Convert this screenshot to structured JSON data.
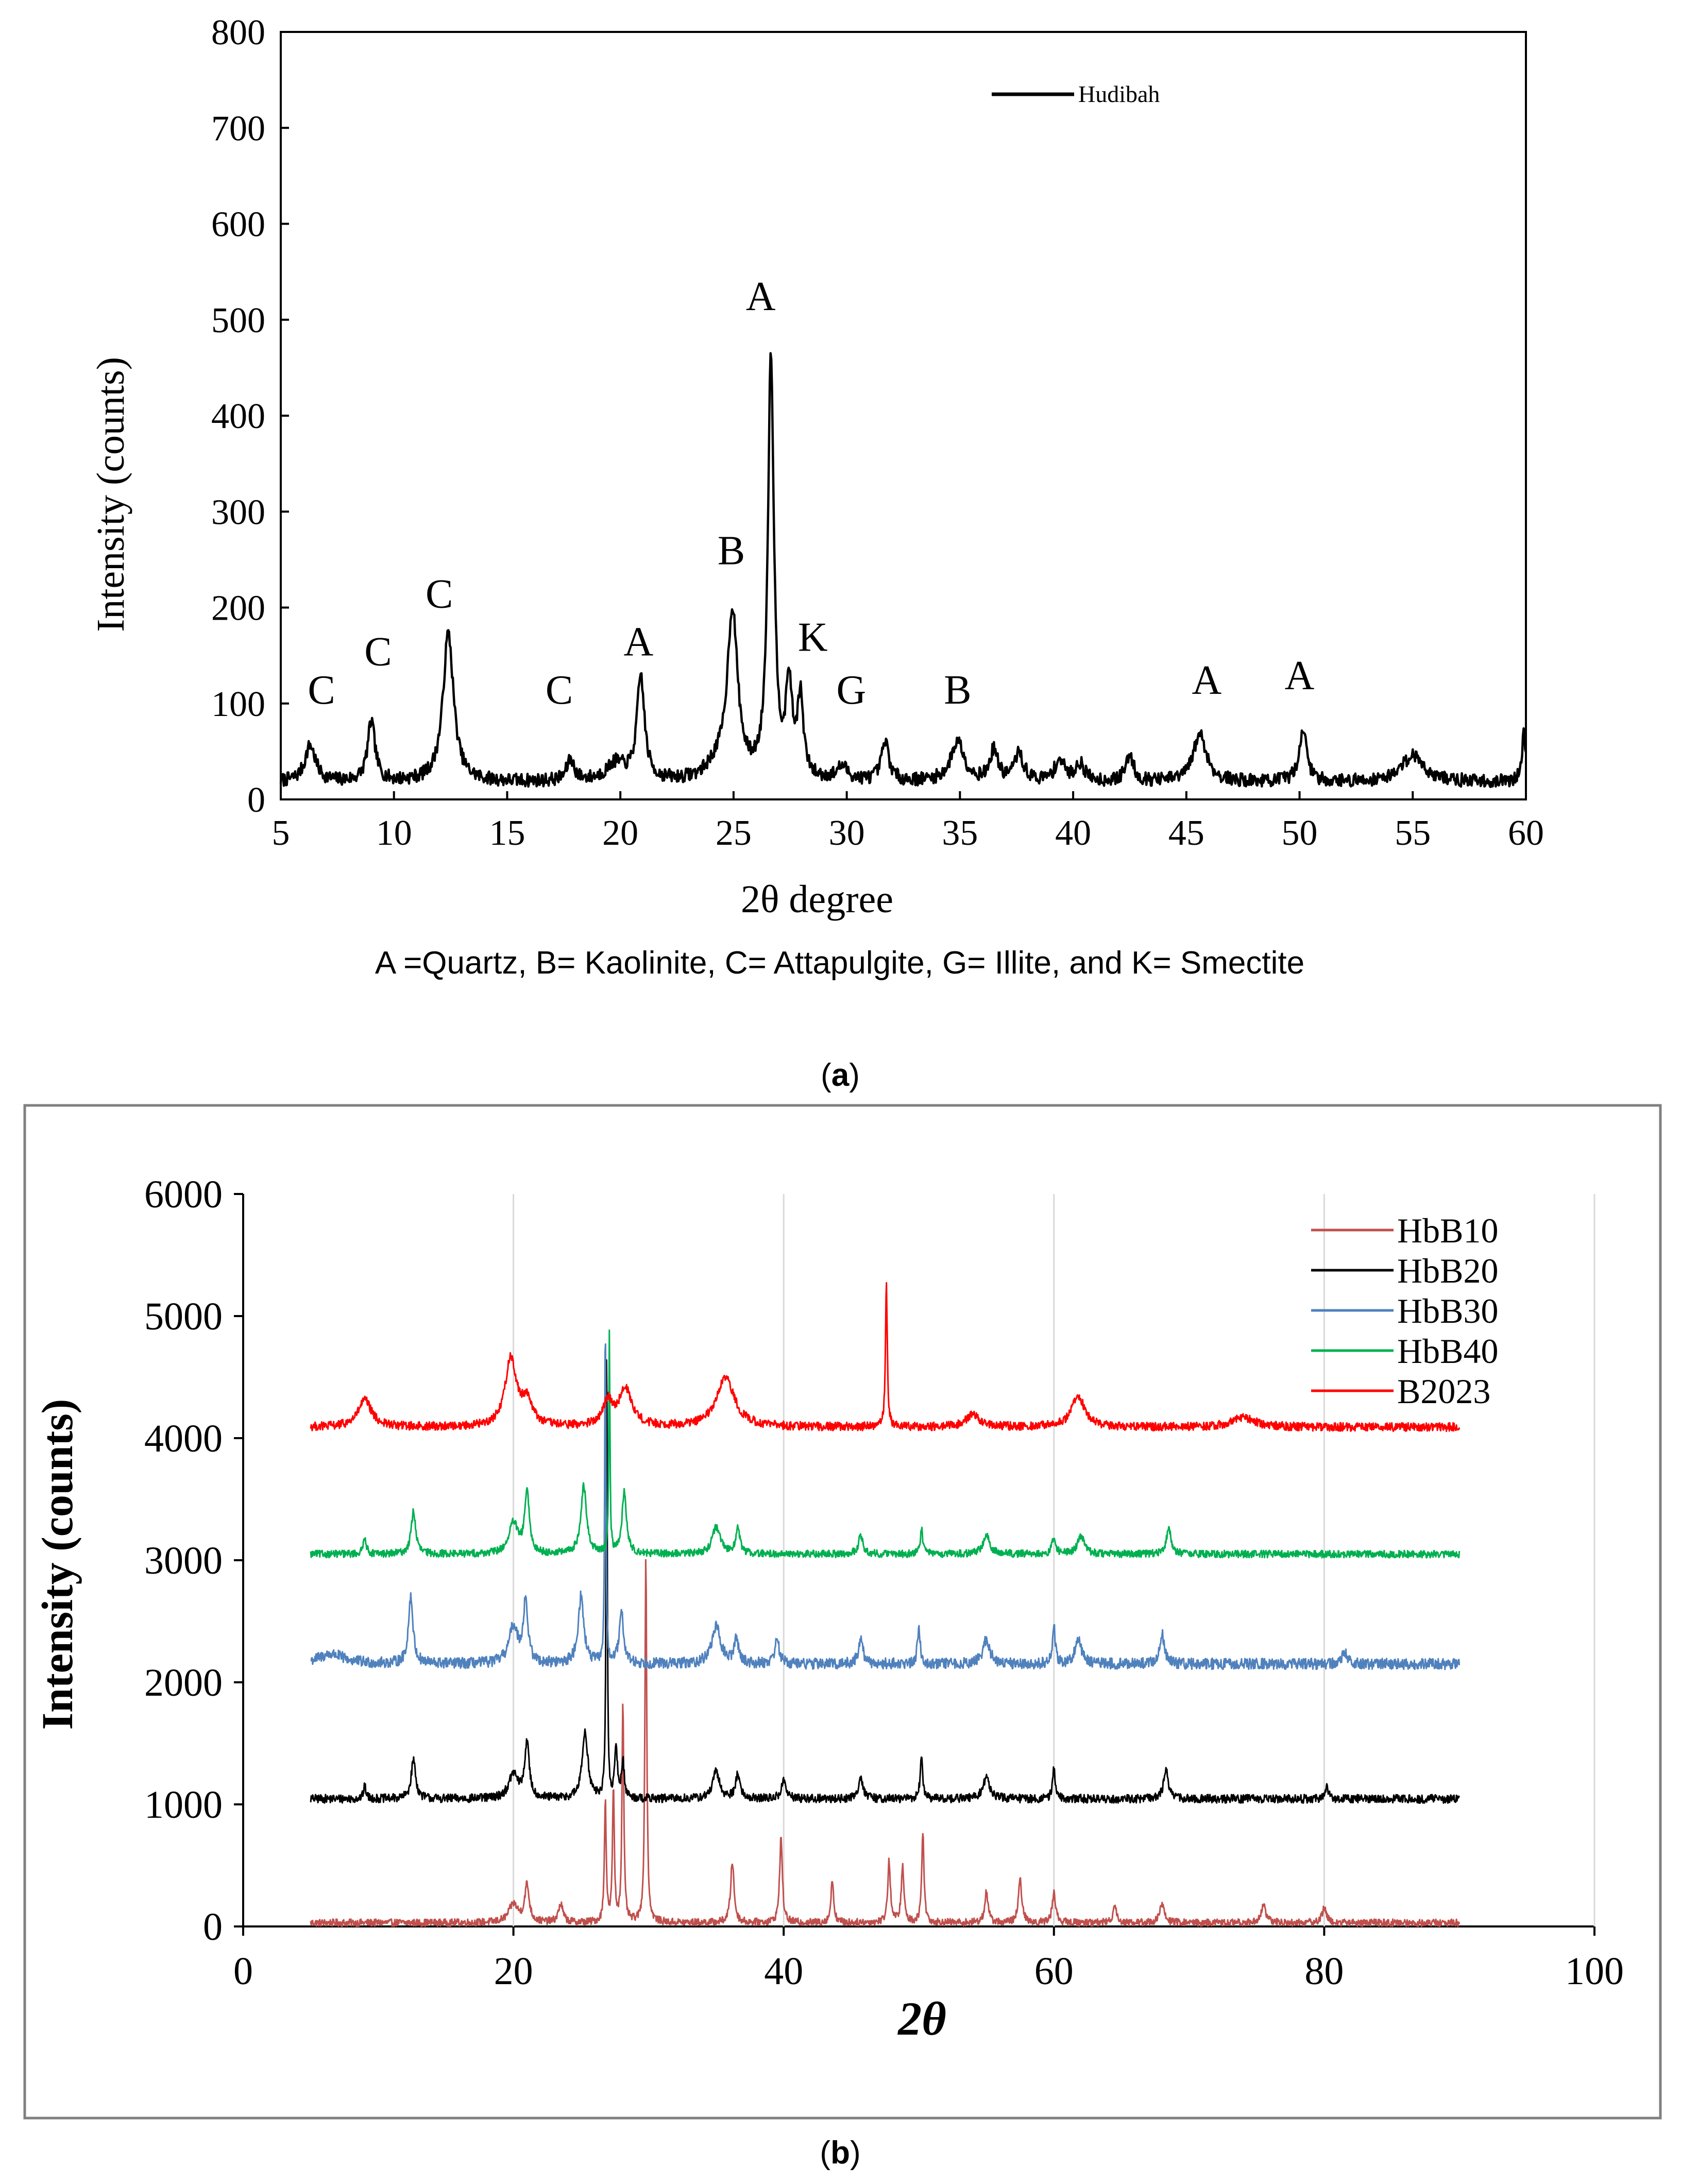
{
  "colors": {
    "hudibah": "#000000",
    "HbB10": "#c0504d",
    "HbB20": "#000000",
    "HbB30": "#4f81bd",
    "HbB40": "#00b050",
    "B2023": "#ff0000",
    "frame": "#808080"
  },
  "chart_data": [
    {
      "id": "a",
      "type": "line",
      "title": "",
      "xlabel": "2θ degree",
      "ylabel": "Intensity (counts)",
      "xlim": [
        5,
        60
      ],
      "ylim": [
        0,
        800
      ],
      "xticks": [
        5,
        10,
        15,
        20,
        25,
        30,
        35,
        40,
        45,
        50,
        55,
        60
      ],
      "yticks": [
        0,
        100,
        200,
        300,
        400,
        500,
        600,
        700,
        800
      ],
      "legend": {
        "position": "top-right",
        "entries": [
          "Hudibah"
        ]
      },
      "series": [
        {
          "name": "Hudibah",
          "baseline": 18,
          "noise": 14,
          "peaks": [
            [
              6.3,
              38,
              0.28
            ],
            [
              9.0,
              62,
              0.2
            ],
            [
              12.4,
              155,
              0.28
            ],
            [
              17.8,
              22,
              0.2
            ],
            [
              19.8,
              18,
              0.5
            ],
            [
              20.9,
              108,
              0.2
            ],
            [
              24.2,
              12,
              0.5
            ],
            [
              24.95,
              175,
              0.28
            ],
            [
              26.65,
              440,
              0.16
            ],
            [
              27.45,
              95,
              0.16
            ],
            [
              27.95,
              82,
              0.16
            ],
            [
              29.8,
              14,
              0.3
            ],
            [
              31.7,
              40,
              0.2
            ],
            [
              34.9,
              42,
              0.35
            ],
            [
              36.5,
              32,
              0.2
            ],
            [
              37.6,
              28,
              0.25
            ],
            [
              39.4,
              22,
              0.25
            ],
            [
              40.3,
              18,
              0.25
            ],
            [
              42.5,
              28,
              0.2
            ],
            [
              45.6,
              50,
              0.35
            ],
            [
              50.15,
              55,
              0.2
            ],
            [
              55.0,
              28,
              0.6
            ],
            [
              59.9,
              50,
              0.1
            ]
          ]
        }
      ],
      "annotations": [
        {
          "text": "C",
          "x": 6.8,
          "y": 100
        },
        {
          "text": "C",
          "x": 9.3,
          "y": 140
        },
        {
          "text": "C",
          "x": 12.0,
          "y": 200
        },
        {
          "text": "C",
          "x": 17.3,
          "y": 100
        },
        {
          "text": "A",
          "x": 20.8,
          "y": 150
        },
        {
          "text": "B",
          "x": 24.9,
          "y": 245
        },
        {
          "text": "A",
          "x": 26.2,
          "y": 510
        },
        {
          "text": "K",
          "x": 28.5,
          "y": 155
        },
        {
          "text": "G",
          "x": 30.2,
          "y": 100
        },
        {
          "text": "B",
          "x": 34.9,
          "y": 100
        },
        {
          "text": "A",
          "x": 45.9,
          "y": 110
        },
        {
          "text": "A",
          "x": 50.0,
          "y": 115
        }
      ],
      "caption_note": "A =Quartz, B= Kaolinite, C= Attapulgite, G= Illite, and K= Smectite",
      "panel_label": "a"
    },
    {
      "id": "b",
      "type": "line",
      "title": "",
      "xlabel": "2θ",
      "ylabel": "Intensity (counts)",
      "xlim": [
        0,
        100
      ],
      "ylim": [
        0,
        6000
      ],
      "xticks": [
        0,
        20,
        40,
        60,
        80,
        100
      ],
      "yticks": [
        0,
        1000,
        2000,
        3000,
        4000,
        5000,
        6000
      ],
      "legend": {
        "position": "top-right",
        "entries": [
          "HbB10",
          "HbB20",
          "HbB30",
          "HbB40",
          "B2023"
        ]
      },
      "series": [
        {
          "name": "HbB10",
          "offset": 0,
          "baseline": 30,
          "noise": 60,
          "peaks": [
            [
              20.0,
              150,
              0.4
            ],
            [
              21.0,
              300,
              0.2
            ],
            [
              23.5,
              150,
              0.2
            ],
            [
              26.8,
              1000,
              0.08
            ],
            [
              27.4,
              1100,
              0.08
            ],
            [
              28.1,
              1800,
              0.08
            ],
            [
              29.8,
              3000,
              0.08
            ],
            [
              36.2,
              500,
              0.15
            ],
            [
              39.8,
              700,
              0.12
            ],
            [
              43.6,
              350,
              0.12
            ],
            [
              47.8,
              500,
              0.12
            ],
            [
              48.8,
              450,
              0.12
            ],
            [
              50.3,
              750,
              0.1
            ],
            [
              55.0,
              250,
              0.15
            ],
            [
              57.5,
              350,
              0.15
            ],
            [
              60.0,
              250,
              0.15
            ],
            [
              64.5,
              150,
              0.15
            ],
            [
              68.0,
              150,
              0.2
            ],
            [
              75.5,
              150,
              0.2
            ],
            [
              80.0,
              120,
              0.2
            ]
          ]
        },
        {
          "name": "HbB20",
          "offset": 1000,
          "baseline": 45,
          "noise": 70,
          "peaks": [
            [
              9.0,
              100,
              0.12
            ],
            [
              12.6,
              320,
              0.2
            ],
            [
              20.0,
              200,
              0.4
            ],
            [
              21.0,
              450,
              0.2
            ],
            [
              25.3,
              550,
              0.25
            ],
            [
              26.9,
              3800,
              0.05
            ],
            [
              27.6,
              400,
              0.12
            ],
            [
              28.1,
              300,
              0.12
            ],
            [
              35.0,
              220,
              0.3
            ],
            [
              36.6,
              200,
              0.2
            ],
            [
              40.0,
              150,
              0.2
            ],
            [
              45.7,
              180,
              0.2
            ],
            [
              50.2,
              320,
              0.12
            ],
            [
              55.0,
              170,
              0.3
            ],
            [
              60.0,
              250,
              0.12
            ],
            [
              68.3,
              250,
              0.2
            ],
            [
              80.2,
              100,
              0.15
            ]
          ]
        },
        {
          "name": "HbB30",
          "offset": 2000,
          "baseline": 150,
          "noise": 90,
          "peaks": [
            [
              6.5,
              80,
              1.2
            ],
            [
              12.4,
              550,
              0.2
            ],
            [
              20.0,
              300,
              0.4
            ],
            [
              20.9,
              500,
              0.2
            ],
            [
              25.0,
              550,
              0.25
            ],
            [
              26.8,
              2900,
              0.05
            ],
            [
              28.0,
              400,
              0.2
            ],
            [
              35.0,
              300,
              0.4
            ],
            [
              36.5,
              200,
              0.2
            ],
            [
              39.5,
              200,
              0.2
            ],
            [
              45.7,
              200,
              0.2
            ],
            [
              50.0,
              300,
              0.12
            ],
            [
              55.0,
              200,
              0.3
            ],
            [
              60.0,
              300,
              0.12
            ],
            [
              61.8,
              200,
              0.3
            ],
            [
              68.0,
              250,
              0.2
            ],
            [
              81.5,
              100,
              0.2
            ]
          ]
        },
        {
          "name": "HbB40",
          "offset": 3000,
          "baseline": 50,
          "noise": 60,
          "peaks": [
            [
              9.0,
              150,
              0.12
            ],
            [
              12.6,
              350,
              0.2
            ],
            [
              20.0,
              250,
              0.4
            ],
            [
              21.0,
              500,
              0.2
            ],
            [
              25.2,
              550,
              0.25
            ],
            [
              27.1,
              1800,
              0.05
            ],
            [
              28.2,
              500,
              0.2
            ],
            [
              35.0,
              220,
              0.35
            ],
            [
              36.6,
              200,
              0.2
            ],
            [
              45.7,
              150,
              0.2
            ],
            [
              50.2,
              200,
              0.12
            ],
            [
              55.0,
              150,
              0.3
            ],
            [
              60.0,
              150,
              0.15
            ],
            [
              62.0,
              150,
              0.3
            ],
            [
              68.5,
              220,
              0.2
            ]
          ]
        },
        {
          "name": "B2023",
          "offset": 4000,
          "baseline": 90,
          "noise": 70,
          "peaks": [
            [
              9.0,
              220,
              0.6
            ],
            [
              19.8,
              550,
              0.5
            ],
            [
              21.0,
              200,
              0.5
            ],
            [
              27.0,
              200,
              0.4
            ],
            [
              28.3,
              300,
              0.6
            ],
            [
              35.7,
              400,
              0.8
            ],
            [
              47.6,
              1200,
              0.08
            ],
            [
              54.0,
              100,
              0.6
            ],
            [
              61.8,
              250,
              0.6
            ],
            [
              74.0,
              80,
              1.0
            ]
          ]
        }
      ],
      "panel_label": "b"
    }
  ]
}
